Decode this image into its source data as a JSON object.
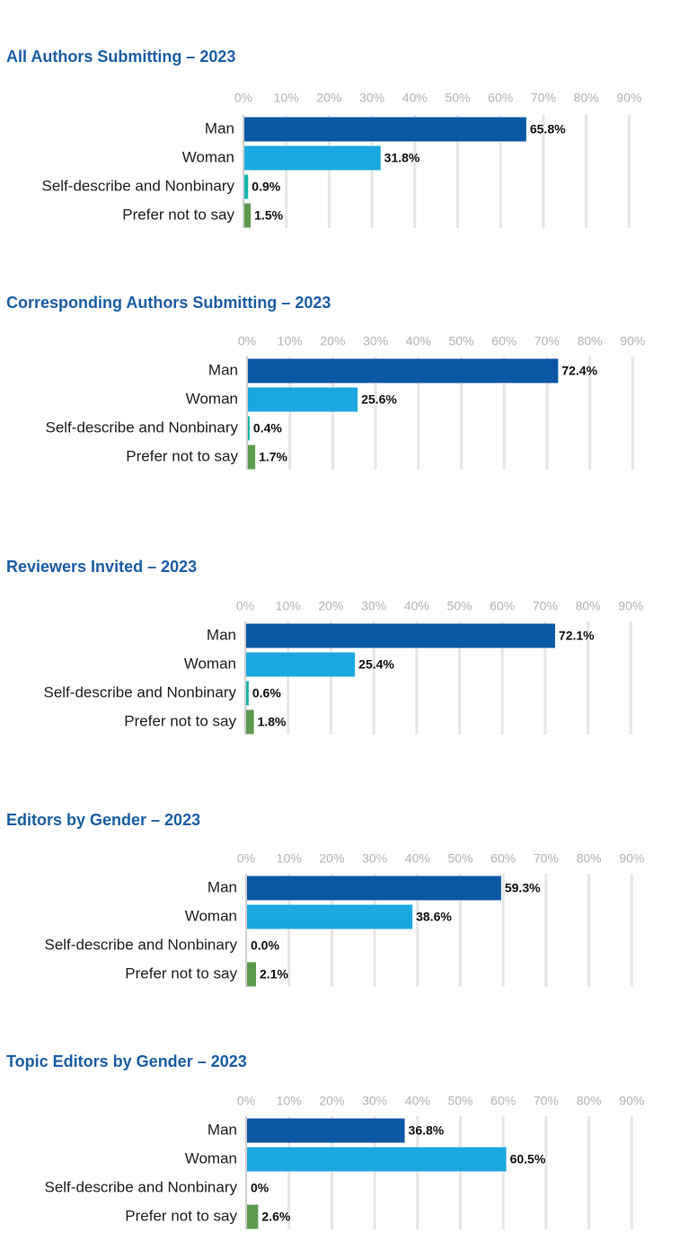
{
  "colors": {
    "Man": "#0a57a4",
    "Woman": "#1ba8e0",
    "Self-describe and Nonbinary": "#14b5ad",
    "Prefer not to say": "#5c9a4e",
    "title": "#1a5ea6"
  },
  "chart_data": [
    {
      "type": "bar",
      "orientation": "horizontal",
      "title": "All Authors Submitting – 2023",
      "categories": [
        "Man",
        "Woman",
        "Self-describe and Nonbinary",
        "Prefer not to say"
      ],
      "values": [
        65.8,
        31.8,
        0.9,
        1.5
      ],
      "value_labels": [
        "65.8%",
        "31.8%",
        "0.9%",
        "1.5%"
      ],
      "ticks": [
        "0%",
        "10%",
        "20%",
        "30%",
        "40%",
        "50%",
        "60%",
        "70%",
        "80%",
        "90%"
      ],
      "xlim": [
        0,
        90
      ],
      "grid": true,
      "legend": "none"
    },
    {
      "type": "bar",
      "orientation": "horizontal",
      "title": "Corresponding Authors Submitting – 2023",
      "categories": [
        "Man",
        "Woman",
        "Self-describe and Nonbinary",
        "Prefer not to say"
      ],
      "values": [
        72.4,
        25.6,
        0.4,
        1.7
      ],
      "value_labels": [
        "72.4%",
        "25.6%",
        "0.4%",
        "1.7%"
      ],
      "ticks": [
        "0%",
        "10%",
        "20%",
        "30%",
        "40%",
        "50%",
        "60%",
        "70%",
        "80%",
        "90%"
      ],
      "xlim": [
        0,
        90
      ],
      "grid": true,
      "legend": "none"
    },
    {
      "type": "bar",
      "orientation": "horizontal",
      "title": "Reviewers Invited – 2023",
      "categories": [
        "Man",
        "Woman",
        "Self-describe and Nonbinary",
        "Prefer not to say"
      ],
      "values": [
        72.1,
        25.4,
        0.6,
        1.8
      ],
      "value_labels": [
        "72.1%",
        "25.4%",
        "0.6%",
        "1.8%"
      ],
      "ticks": [
        "0%",
        "10%",
        "20%",
        "30%",
        "40%",
        "50%",
        "60%",
        "70%",
        "80%",
        "90%"
      ],
      "xlim": [
        0,
        90
      ],
      "grid": true,
      "legend": "none"
    },
    {
      "type": "bar",
      "orientation": "horizontal",
      "title": "Editors by Gender – 2023",
      "categories": [
        "Man",
        "Woman",
        "Self-describe and Nonbinary",
        "Prefer not to say"
      ],
      "values": [
        59.3,
        38.6,
        0.0,
        2.1
      ],
      "value_labels": [
        "59.3%",
        "38.6%",
        "0.0%",
        "2.1%"
      ],
      "ticks": [
        "0%",
        "10%",
        "20%",
        "30%",
        "40%",
        "50%",
        "60%",
        "70%",
        "80%",
        "90%"
      ],
      "xlim": [
        0,
        90
      ],
      "grid": true,
      "legend": "none"
    },
    {
      "type": "bar",
      "orientation": "horizontal",
      "title": "Topic Editors by Gender – 2023",
      "categories": [
        "Man",
        "Woman",
        "Self-describe and Nonbinary",
        "Prefer not to say"
      ],
      "values": [
        36.8,
        60.5,
        0,
        2.6
      ],
      "value_labels": [
        "36.8%",
        "60.5%",
        "0%",
        "2.6%"
      ],
      "ticks": [
        "0%",
        "10%",
        "20%",
        "30%",
        "40%",
        "50%",
        "60%",
        "70%",
        "80%",
        "90%"
      ],
      "xlim": [
        0,
        90
      ],
      "grid": true,
      "legend": "none"
    }
  ]
}
